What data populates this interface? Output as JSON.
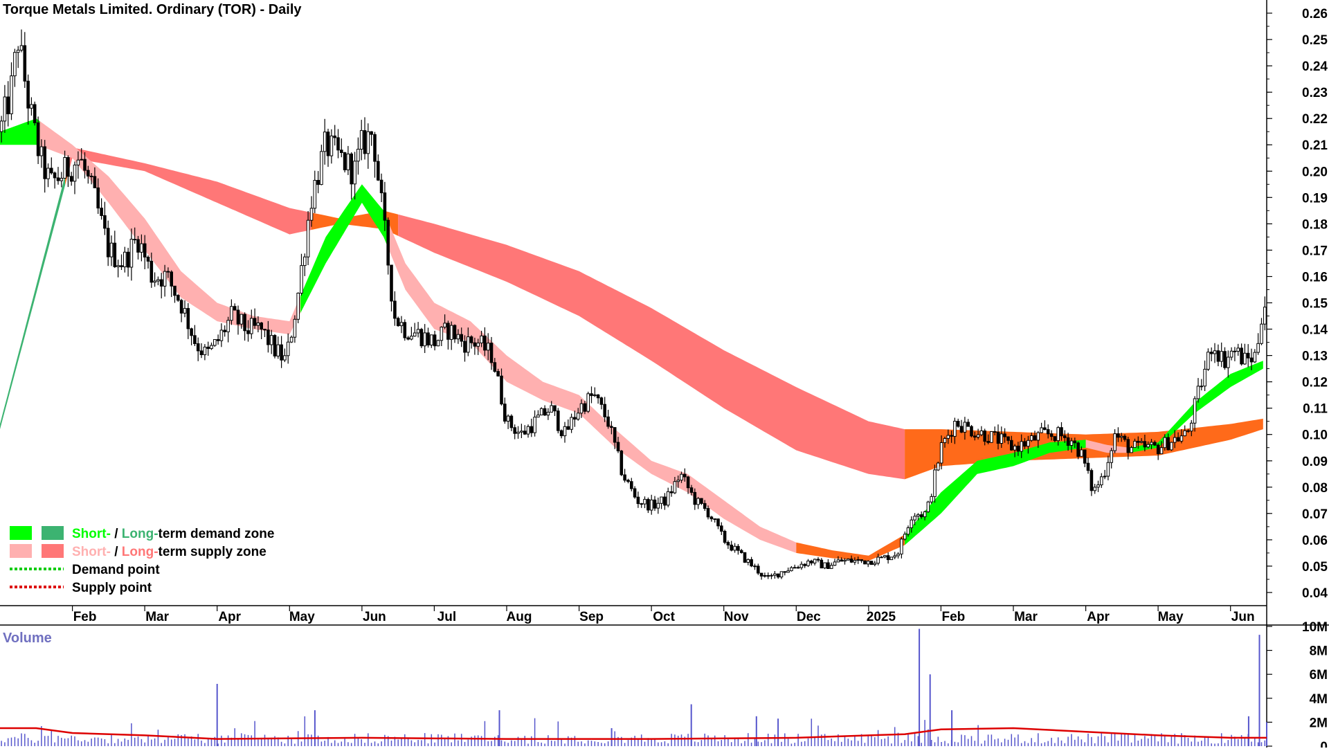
{
  "chart_data": {
    "type": "candlestick",
    "title": "Torque Metals Limited. Ordinary (TOR) - Daily",
    "colors": {
      "short_demand": "#00ff00",
      "long_demand": "#3cb371",
      "short_supply": "#ffb0b0",
      "long_supply": "#ff7777",
      "orange_zone": "#ff6a1a",
      "demand_point": "#00cc00",
      "supply_point": "#dd0000",
      "volume_bar": "#5555cc",
      "volume_avg": "#dd0000"
    },
    "price_axis": {
      "ylim": [
        0.035,
        0.265
      ],
      "ticks": [
        "0.26",
        "0.25",
        "0.24",
        "0.23",
        "0.22",
        "0.21",
        "0.20",
        "0.19",
        "0.18",
        "0.17",
        "0.16",
        "0.15",
        "0.14",
        "0.13",
        "0.12",
        "0.11",
        "0.10",
        "0.09",
        "0.08",
        "0.07",
        "0.06",
        "0.05",
        "0.04"
      ]
    },
    "x_axis": {
      "range_months": [
        0,
        17.5
      ],
      "ticks": [
        {
          "label": "Feb",
          "pos": 1.0
        },
        {
          "label": "Mar",
          "pos": 2.0
        },
        {
          "label": "Apr",
          "pos": 3.0
        },
        {
          "label": "May",
          "pos": 4.0
        },
        {
          "label": "Jun",
          "pos": 5.0
        },
        {
          "label": "Jul",
          "pos": 6.0
        },
        {
          "label": "Aug",
          "pos": 7.0
        },
        {
          "label": "Sep",
          "pos": 8.0
        },
        {
          "label": "Oct",
          "pos": 9.0
        },
        {
          "label": "Nov",
          "pos": 10.0
        },
        {
          "label": "Dec",
          "pos": 11.0
        },
        {
          "label": "2025",
          "pos": 12.0
        },
        {
          "label": "Feb",
          "pos": 13.0
        },
        {
          "label": "Mar",
          "pos": 14.0
        },
        {
          "label": "Apr",
          "pos": 15.0
        },
        {
          "label": "May",
          "pos": 16.0
        },
        {
          "label": "Jun",
          "pos": 17.0
        }
      ]
    },
    "price_series": [
      [
        0.0,
        0.215
      ],
      [
        0.15,
        0.23
      ],
      [
        0.25,
        0.25
      ],
      [
        0.4,
        0.225
      ],
      [
        0.55,
        0.205
      ],
      [
        0.7,
        0.195
      ],
      [
        0.9,
        0.2
      ],
      [
        1.1,
        0.205
      ],
      [
        1.3,
        0.19
      ],
      [
        1.5,
        0.17
      ],
      [
        1.7,
        0.165
      ],
      [
        1.9,
        0.175
      ],
      [
        2.1,
        0.16
      ],
      [
        2.3,
        0.16
      ],
      [
        2.5,
        0.15
      ],
      [
        2.7,
        0.135
      ],
      [
        2.85,
        0.13
      ],
      [
        3.0,
        0.135
      ],
      [
        3.2,
        0.145
      ],
      [
        3.4,
        0.14
      ],
      [
        3.6,
        0.14
      ],
      [
        3.8,
        0.132
      ],
      [
        3.95,
        0.128
      ],
      [
        4.1,
        0.15
      ],
      [
        4.3,
        0.19
      ],
      [
        4.5,
        0.21
      ],
      [
        4.7,
        0.205
      ],
      [
        4.9,
        0.2
      ],
      [
        5.0,
        0.21
      ],
      [
        5.15,
        0.215
      ],
      [
        5.3,
        0.18
      ],
      [
        5.45,
        0.145
      ],
      [
        5.6,
        0.14
      ],
      [
        5.8,
        0.138
      ],
      [
        6.0,
        0.135
      ],
      [
        6.2,
        0.14
      ],
      [
        6.4,
        0.135
      ],
      [
        6.6,
        0.135
      ],
      [
        6.8,
        0.13
      ],
      [
        7.0,
        0.105
      ],
      [
        7.2,
        0.1
      ],
      [
        7.4,
        0.105
      ],
      [
        7.6,
        0.11
      ],
      [
        7.8,
        0.1
      ],
      [
        8.0,
        0.11
      ],
      [
        8.2,
        0.115
      ],
      [
        8.4,
        0.105
      ],
      [
        8.6,
        0.085
      ],
      [
        8.8,
        0.075
      ],
      [
        9.0,
        0.073
      ],
      [
        9.2,
        0.075
      ],
      [
        9.4,
        0.085
      ],
      [
        9.6,
        0.075
      ],
      [
        9.8,
        0.07
      ],
      [
        10.0,
        0.06
      ],
      [
        10.2,
        0.055
      ],
      [
        10.4,
        0.05
      ],
      [
        10.6,
        0.045
      ],
      [
        10.8,
        0.048
      ],
      [
        11.0,
        0.05
      ],
      [
        11.2,
        0.052
      ],
      [
        11.4,
        0.05
      ],
      [
        11.6,
        0.052
      ],
      [
        11.8,
        0.052
      ],
      [
        12.0,
        0.052
      ],
      [
        12.2,
        0.053
      ],
      [
        12.4,
        0.055
      ],
      [
        12.6,
        0.07
      ],
      [
        12.8,
        0.07
      ],
      [
        13.0,
        0.095
      ],
      [
        13.2,
        0.105
      ],
      [
        13.4,
        0.102
      ],
      [
        13.6,
        0.1
      ],
      [
        13.8,
        0.098
      ],
      [
        14.0,
        0.095
      ],
      [
        14.2,
        0.097
      ],
      [
        14.4,
        0.1
      ],
      [
        14.6,
        0.1
      ],
      [
        14.8,
        0.098
      ],
      [
        14.95,
        0.092
      ],
      [
        15.1,
        0.078
      ],
      [
        15.25,
        0.085
      ],
      [
        15.4,
        0.1
      ],
      [
        15.6,
        0.095
      ],
      [
        15.8,
        0.095
      ],
      [
        16.0,
        0.095
      ],
      [
        16.2,
        0.098
      ],
      [
        16.4,
        0.1
      ],
      [
        16.6,
        0.12
      ],
      [
        16.75,
        0.135
      ],
      [
        16.9,
        0.128
      ],
      [
        17.05,
        0.132
      ],
      [
        17.2,
        0.128
      ],
      [
        17.35,
        0.13
      ],
      [
        17.45,
        0.15
      ]
    ],
    "long_band": [
      [
        0.0,
        0.102,
        0.104
      ],
      [
        1.0,
        0.205,
        0.209
      ],
      [
        2.0,
        0.2,
        0.203
      ],
      [
        3.0,
        0.188,
        0.196
      ],
      [
        4.0,
        0.176,
        0.186
      ],
      [
        4.7,
        0.18,
        0.182
      ],
      [
        5.3,
        0.178,
        0.185
      ],
      [
        6.0,
        0.169,
        0.18
      ],
      [
        7.0,
        0.158,
        0.172
      ],
      [
        8.0,
        0.145,
        0.162
      ],
      [
        9.0,
        0.128,
        0.148
      ],
      [
        10.0,
        0.11,
        0.132
      ],
      [
        11.0,
        0.094,
        0.118
      ],
      [
        12.0,
        0.085,
        0.105
      ],
      [
        12.5,
        0.083,
        0.102
      ],
      [
        13.0,
        0.088,
        0.102
      ],
      [
        14.0,
        0.09,
        0.101
      ],
      [
        15.0,
        0.091,
        0.1
      ],
      [
        16.0,
        0.092,
        0.101
      ],
      [
        17.0,
        0.098,
        0.104
      ],
      [
        17.45,
        0.102,
        0.106
      ]
    ],
    "short_band": [
      [
        0.0,
        0.21,
        0.215
      ],
      [
        0.5,
        0.21,
        0.22
      ],
      [
        1.0,
        0.205,
        0.21
      ],
      [
        1.5,
        0.188,
        0.198
      ],
      [
        2.0,
        0.17,
        0.182
      ],
      [
        2.5,
        0.152,
        0.162
      ],
      [
        3.0,
        0.143,
        0.15
      ],
      [
        3.5,
        0.14,
        0.145
      ],
      [
        4.0,
        0.138,
        0.143
      ],
      [
        4.5,
        0.165,
        0.175
      ],
      [
        5.0,
        0.188,
        0.195
      ],
      [
        5.3,
        0.175,
        0.185
      ],
      [
        5.6,
        0.155,
        0.165
      ],
      [
        6.0,
        0.14,
        0.15
      ],
      [
        6.5,
        0.135,
        0.143
      ],
      [
        7.0,
        0.12,
        0.13
      ],
      [
        7.5,
        0.113,
        0.12
      ],
      [
        8.0,
        0.108,
        0.115
      ],
      [
        8.5,
        0.095,
        0.102
      ],
      [
        9.0,
        0.085,
        0.09
      ],
      [
        9.5,
        0.078,
        0.085
      ],
      [
        10.0,
        0.068,
        0.075
      ],
      [
        10.5,
        0.06,
        0.065
      ],
      [
        11.0,
        0.055,
        0.059
      ],
      [
        11.5,
        0.053,
        0.056
      ],
      [
        12.0,
        0.052,
        0.054
      ],
      [
        12.5,
        0.058,
        0.062
      ],
      [
        13.0,
        0.07,
        0.078
      ],
      [
        13.5,
        0.085,
        0.09
      ],
      [
        14.0,
        0.088,
        0.093
      ],
      [
        14.5,
        0.093,
        0.097
      ],
      [
        15.0,
        0.095,
        0.098
      ],
      [
        15.3,
        0.093,
        0.096
      ],
      [
        15.6,
        0.093,
        0.095
      ],
      [
        16.0,
        0.095,
        0.097
      ],
      [
        16.5,
        0.108,
        0.112
      ],
      [
        17.0,
        0.118,
        0.123
      ],
      [
        17.45,
        0.125,
        0.128
      ]
    ],
    "legend": [
      {
        "short": "Short-",
        "sep": " / ",
        "long": "Long-",
        "rest": "term demand zone",
        "kind": "demand"
      },
      {
        "short": "Short-",
        "sep": " / ",
        "long": "Long-",
        "rest": "term supply zone",
        "kind": "supply"
      },
      {
        "rest": "Demand point",
        "kind": "demand-point"
      },
      {
        "rest": "Supply point",
        "kind": "supply-point"
      }
    ],
    "volume": {
      "label": "Volume",
      "ylim": [
        0,
        10
      ],
      "ticks": [
        "10M",
        "8M",
        "6M",
        "4M",
        "2M",
        "0"
      ],
      "spikes": [
        [
          3.0,
          5.2
        ],
        [
          4.35,
          3.0
        ],
        [
          6.9,
          3.0
        ],
        [
          8.45,
          1.5
        ],
        [
          9.55,
          3.5
        ],
        [
          10.45,
          2.5
        ],
        [
          10.75,
          2.3
        ],
        [
          12.7,
          9.8
        ],
        [
          12.85,
          6.0
        ],
        [
          13.15,
          3.0
        ],
        [
          17.25,
          2.5
        ],
        [
          17.4,
          9.3
        ],
        [
          17.5,
          2.0
        ]
      ],
      "avg": [
        [
          0.0,
          1.5
        ],
        [
          0.5,
          1.5
        ],
        [
          1.0,
          1.1
        ],
        [
          2.0,
          0.9
        ],
        [
          3.0,
          0.6
        ],
        [
          5.0,
          0.7
        ],
        [
          7.0,
          0.6
        ],
        [
          9.0,
          0.6
        ],
        [
          11.0,
          0.7
        ],
        [
          12.5,
          1.0
        ],
        [
          13.0,
          1.4
        ],
        [
          14.0,
          1.5
        ],
        [
          15.0,
          1.2
        ],
        [
          16.0,
          0.9
        ],
        [
          17.0,
          0.7
        ],
        [
          17.5,
          0.7
        ]
      ]
    }
  }
}
